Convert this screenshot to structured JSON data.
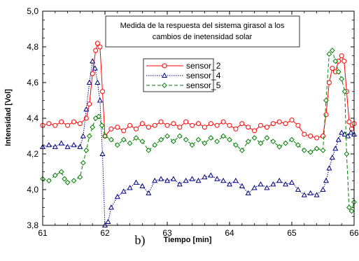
{
  "chart_data": {
    "type": "line",
    "title": "Medida de la respuesta del sistema girasol a los cambios de inetensidad solar",
    "xlabel": "Tiempo [min]",
    "ylabel": "Intensidad [Vol]",
    "panel_label": "b)",
    "xlim": [
      61,
      66
    ],
    "ylim": [
      3.8,
      5.0
    ],
    "x_ticks": [
      "61",
      "62",
      "63",
      "64",
      "65",
      "66"
    ],
    "y_ticks": [
      "3,8",
      "4,0",
      "4,2",
      "4,4",
      "4,6",
      "4,8",
      "5,0"
    ],
    "grid": false,
    "legend_position": "upper-center",
    "series": [
      {
        "name": "sensor_2",
        "color": "#ff0000",
        "marker": "circle",
        "line_style": "solid",
        "points": [
          [
            61.0,
            4.36
          ],
          [
            61.1,
            4.37
          ],
          [
            61.2,
            4.36
          ],
          [
            61.3,
            4.38
          ],
          [
            61.4,
            4.36
          ],
          [
            61.5,
            4.38
          ],
          [
            61.6,
            4.37
          ],
          [
            61.7,
            4.4
          ],
          [
            61.75,
            4.48
          ],
          [
            61.8,
            4.65
          ],
          [
            61.85,
            4.78
          ],
          [
            61.88,
            4.82
          ],
          [
            61.92,
            4.8
          ],
          [
            61.96,
            4.55
          ],
          [
            62.0,
            4.3
          ],
          [
            62.1,
            4.34
          ],
          [
            62.2,
            4.35
          ],
          [
            62.3,
            4.33
          ],
          [
            62.4,
            4.36
          ],
          [
            62.5,
            4.34
          ],
          [
            62.6,
            4.37
          ],
          [
            62.7,
            4.35
          ],
          [
            62.8,
            4.36
          ],
          [
            62.9,
            4.38
          ],
          [
            63.0,
            4.36
          ],
          [
            63.1,
            4.37
          ],
          [
            63.2,
            4.35
          ],
          [
            63.3,
            4.38
          ],
          [
            63.4,
            4.36
          ],
          [
            63.5,
            4.37
          ],
          [
            63.6,
            4.35
          ],
          [
            63.7,
            4.37
          ],
          [
            63.8,
            4.36
          ],
          [
            63.9,
            4.38
          ],
          [
            64.0,
            4.36
          ],
          [
            64.1,
            4.34
          ],
          [
            64.2,
            4.37
          ],
          [
            64.3,
            4.35
          ],
          [
            64.4,
            4.33
          ],
          [
            64.5,
            4.36
          ],
          [
            64.6,
            4.35
          ],
          [
            64.7,
            4.37
          ],
          [
            64.8,
            4.38
          ],
          [
            64.9,
            4.37
          ],
          [
            65.0,
            4.39
          ],
          [
            65.1,
            4.36
          ],
          [
            65.2,
            4.31
          ],
          [
            65.3,
            4.3
          ],
          [
            65.4,
            4.29
          ],
          [
            65.5,
            4.3
          ],
          [
            65.55,
            4.42
          ],
          [
            65.6,
            4.6
          ],
          [
            65.65,
            4.68
          ],
          [
            65.7,
            4.66
          ],
          [
            65.75,
            4.72
          ],
          [
            65.8,
            4.75
          ],
          [
            65.84,
            4.72
          ],
          [
            65.88,
            4.55
          ],
          [
            65.92,
            4.38
          ],
          [
            65.96,
            4.34
          ],
          [
            66.0,
            4.37
          ]
        ]
      },
      {
        "name": "sensor_4",
        "color": "#000080",
        "marker": "triangle",
        "line_style": "dotted",
        "points": [
          [
            61.0,
            4.24
          ],
          [
            61.1,
            4.25
          ],
          [
            61.2,
            4.24
          ],
          [
            61.3,
            4.26
          ],
          [
            61.4,
            4.24
          ],
          [
            61.5,
            4.25
          ],
          [
            61.6,
            4.24
          ],
          [
            61.65,
            4.3
          ],
          [
            61.7,
            4.45
          ],
          [
            61.75,
            4.6
          ],
          [
            61.8,
            4.72
          ],
          [
            61.84,
            4.68
          ],
          [
            61.88,
            4.6
          ],
          [
            61.92,
            4.5
          ],
          [
            61.96,
            4.2
          ],
          [
            62.0,
            3.8
          ],
          [
            62.05,
            3.82
          ],
          [
            62.1,
            3.9
          ],
          [
            62.2,
            3.96
          ],
          [
            62.3,
            3.99
          ],
          [
            62.4,
            4.01
          ],
          [
            62.5,
            4.04
          ],
          [
            62.6,
            4.02
          ],
          [
            62.7,
            3.98
          ],
          [
            62.8,
            4.05
          ],
          [
            62.9,
            4.06
          ],
          [
            63.0,
            4.05
          ],
          [
            63.1,
            4.06
          ],
          [
            63.2,
            4.03
          ],
          [
            63.3,
            4.05
          ],
          [
            63.4,
            4.06
          ],
          [
            63.5,
            4.05
          ],
          [
            63.6,
            4.07
          ],
          [
            63.7,
            4.08
          ],
          [
            63.8,
            4.06
          ],
          [
            63.9,
            4.05
          ],
          [
            64.0,
            4.03
          ],
          [
            64.1,
            4.05
          ],
          [
            64.2,
            4.02
          ],
          [
            64.3,
            3.98
          ],
          [
            64.4,
            4.01
          ],
          [
            64.5,
            4.03
          ],
          [
            64.6,
            4.01
          ],
          [
            64.7,
            4.03
          ],
          [
            64.8,
            4.05
          ],
          [
            64.9,
            4.03
          ],
          [
            65.0,
            4.04
          ],
          [
            65.1,
            4.0
          ],
          [
            65.2,
            3.97
          ],
          [
            65.3,
            3.98
          ],
          [
            65.4,
            3.97
          ],
          [
            65.5,
            4.0
          ],
          [
            65.55,
            4.05
          ],
          [
            65.6,
            4.12
          ],
          [
            65.65,
            4.18
          ],
          [
            65.7,
            4.23
          ],
          [
            65.75,
            4.28
          ],
          [
            65.8,
            4.32
          ],
          [
            65.85,
            4.31
          ],
          [
            65.9,
            4.3
          ],
          [
            65.95,
            4.32
          ],
          [
            66.0,
            4.31
          ]
        ]
      },
      {
        "name": "sensor_5",
        "color": "#008000",
        "marker": "diamond",
        "line_style": "dashed",
        "points": [
          [
            61.0,
            4.06
          ],
          [
            61.1,
            4.05
          ],
          [
            61.2,
            4.08
          ],
          [
            61.3,
            4.1
          ],
          [
            61.35,
            4.06
          ],
          [
            61.4,
            4.04
          ],
          [
            61.5,
            4.05
          ],
          [
            61.6,
            4.07
          ],
          [
            61.65,
            4.15
          ],
          [
            61.7,
            4.22
          ],
          [
            61.75,
            4.3
          ],
          [
            61.8,
            4.35
          ],
          [
            61.85,
            4.4
          ],
          [
            61.9,
            4.41
          ],
          [
            61.95,
            4.36
          ],
          [
            62.0,
            4.3
          ],
          [
            62.1,
            4.28
          ],
          [
            62.2,
            4.25
          ],
          [
            62.3,
            4.28
          ],
          [
            62.4,
            4.26
          ],
          [
            62.5,
            4.29
          ],
          [
            62.6,
            4.27
          ],
          [
            62.7,
            4.22
          ],
          [
            62.8,
            4.25
          ],
          [
            62.9,
            4.28
          ],
          [
            63.0,
            4.3
          ],
          [
            63.1,
            4.27
          ],
          [
            63.2,
            4.3
          ],
          [
            63.3,
            4.28
          ],
          [
            63.4,
            4.25
          ],
          [
            63.5,
            4.28
          ],
          [
            63.6,
            4.26
          ],
          [
            63.7,
            4.29
          ],
          [
            63.8,
            4.27
          ],
          [
            63.9,
            4.3
          ],
          [
            64.0,
            4.28
          ],
          [
            64.1,
            4.25
          ],
          [
            64.2,
            4.22
          ],
          [
            64.3,
            4.27
          ],
          [
            64.4,
            4.29
          ],
          [
            64.5,
            4.26
          ],
          [
            64.6,
            4.29
          ],
          [
            64.7,
            4.27
          ],
          [
            64.8,
            4.24
          ],
          [
            64.9,
            4.26
          ],
          [
            65.0,
            4.28
          ],
          [
            65.1,
            4.25
          ],
          [
            65.2,
            4.22
          ],
          [
            65.3,
            4.21
          ],
          [
            65.4,
            4.23
          ],
          [
            65.5,
            4.22
          ],
          [
            65.55,
            4.5
          ],
          [
            65.6,
            4.76
          ],
          [
            65.65,
            4.78
          ],
          [
            65.7,
            4.72
          ],
          [
            65.75,
            4.66
          ],
          [
            65.8,
            4.62
          ],
          [
            65.85,
            4.55
          ],
          [
            65.88,
            4.2
          ],
          [
            65.92,
            3.9
          ],
          [
            65.96,
            3.88
          ],
          [
            66.0,
            3.93
          ]
        ]
      }
    ]
  }
}
